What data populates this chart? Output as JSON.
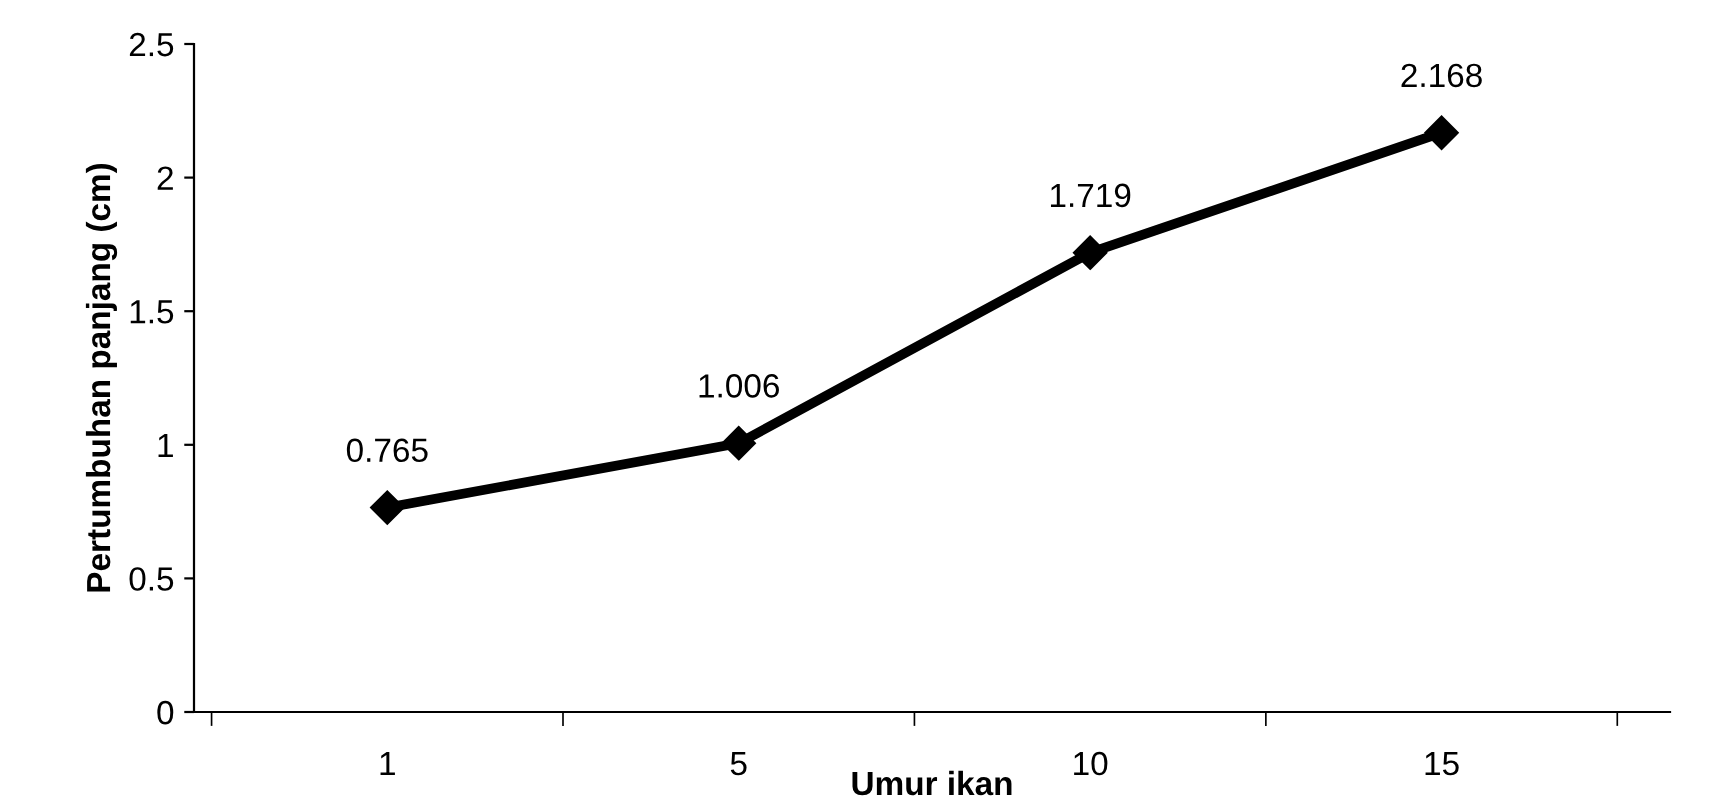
{
  "chart_data": {
    "type": "line",
    "xlabel": "Umur ikan",
    "ylabel": "Pertumbuhan panjang (cm)",
    "categories": [
      "1",
      "5",
      "10",
      "15"
    ],
    "series": [
      {
        "color": "#000000",
        "values": [
          0.765,
          1.006,
          1.719,
          2.168
        ]
      }
    ],
    "ylim": [
      0,
      2.5
    ],
    "yticks": [
      0,
      0.5,
      1,
      1.5,
      2,
      2.5
    ],
    "grid": false,
    "legend": false,
    "marker": "diamond",
    "line_style": "solid",
    "data_labels": true
  }
}
